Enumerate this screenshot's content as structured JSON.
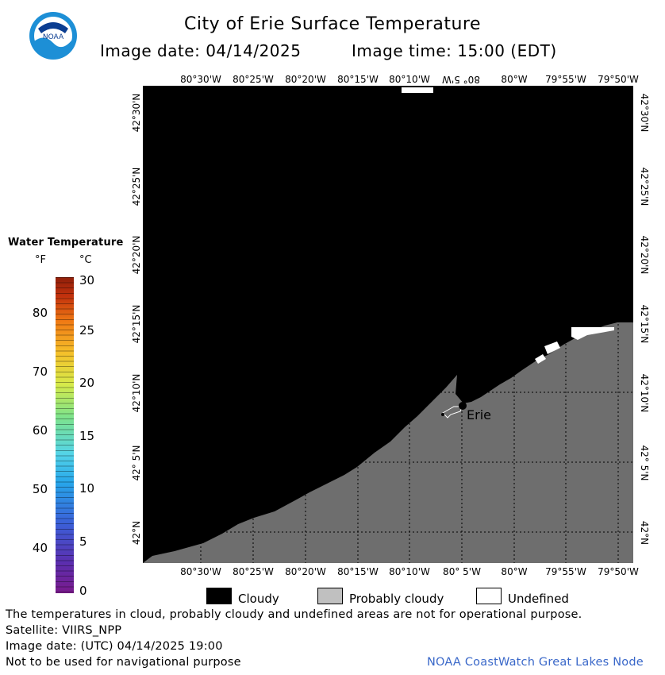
{
  "header": {
    "title": "City of Erie Surface Temperature",
    "image_date_label": "Image date: 04/14/2025",
    "image_time_label": "Image time: 15:00 (EDT)",
    "logo_text": "NOAA"
  },
  "map": {
    "longitude_labels": [
      "80°30'W",
      "80°25'W",
      "80°20'W",
      "80°15'W",
      "80°10'W",
      "80° 5'W",
      "80°W",
      "79°55'W",
      "79°50'W"
    ],
    "latitude_labels": [
      "42°30'N",
      "42°25'N",
      "42°20'N",
      "42°15'N",
      "42°10'N",
      "42° 5'N",
      "42°N"
    ],
    "city_label": "Erie",
    "colors": {
      "cloudy": "#000000",
      "land": "#6e6e6e",
      "undefined": "#ffffff"
    }
  },
  "legend": {
    "title": "Water Temperature",
    "unit_f": "°F",
    "unit_c": "°C",
    "fahrenheit_ticks": [
      "80",
      "70",
      "60",
      "50",
      "40"
    ],
    "celsius_ticks": [
      "30",
      "25",
      "20",
      "15",
      "10",
      "5",
      "0"
    ],
    "keys": [
      {
        "label": "Cloudy",
        "color": "#000000"
      },
      {
        "label": "Probably cloudy",
        "color": "#c0c0c0"
      },
      {
        "label": "Undefined",
        "color": "#ffffff"
      }
    ]
  },
  "footer": {
    "note": "The temperatures in cloud, probably cloudy and undefined areas are not for operational purpose.",
    "satellite": "Satellite: VIIRS_NPP",
    "utc_date": "Image date: (UTC) 04/14/2025  19:00",
    "nav_warning": "Not to be used for navigational purpose",
    "credit": "NOAA CoastWatch Great Lakes Node"
  }
}
